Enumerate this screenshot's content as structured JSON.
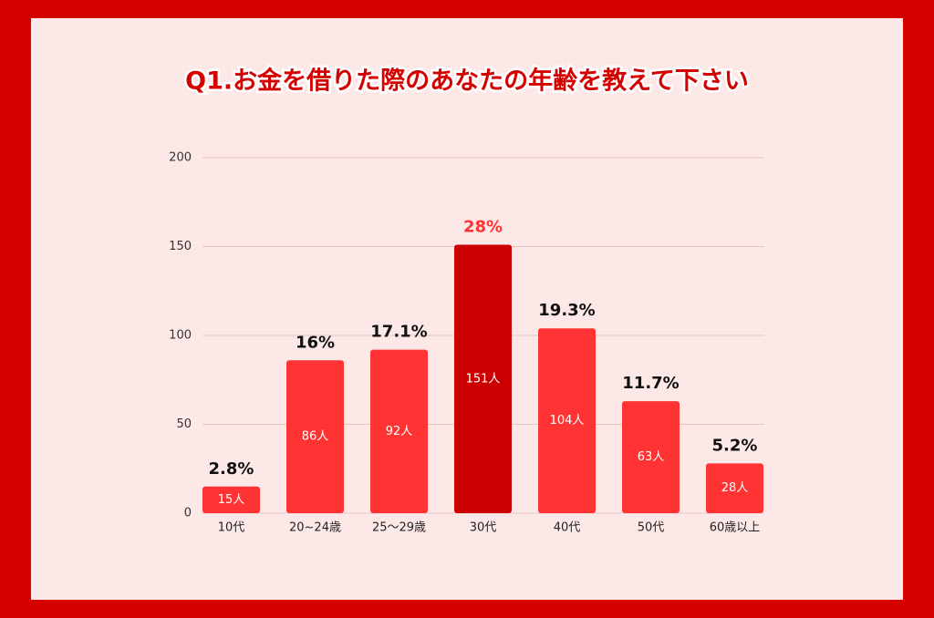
{
  "chart_data": {
    "type": "bar",
    "title": "Q1.お金を借りた際のあなたの年齢を教えて下さい",
    "categories": [
      "10代",
      "20~24歳",
      "25〜29歳",
      "30代",
      "40代",
      "50代",
      "60歳以上"
    ],
    "values": [
      15,
      86,
      92,
      151,
      104,
      63,
      28
    ],
    "value_labels": [
      "15人",
      "86人",
      "92人",
      "151人",
      "104人",
      "63人",
      "28人"
    ],
    "colors": [
      "#ff3333",
      "#ff3333",
      "#ff3333",
      "#cc0000",
      "#ff3333",
      "#ff3333",
      "#ff3333"
    ],
    "annotations": [
      "2.8%",
      "16%",
      "17.1%",
      "28%",
      "19.3%",
      "11.7%",
      "5.2%"
    ],
    "annotation_colors": [
      "#111111",
      "#111111",
      "#111111",
      "#ff3333",
      "#111111",
      "#111111",
      "#111111"
    ],
    "ylim": [
      0,
      200
    ],
    "yticks": [
      0,
      50,
      100,
      150,
      200
    ],
    "grid": true
  }
}
